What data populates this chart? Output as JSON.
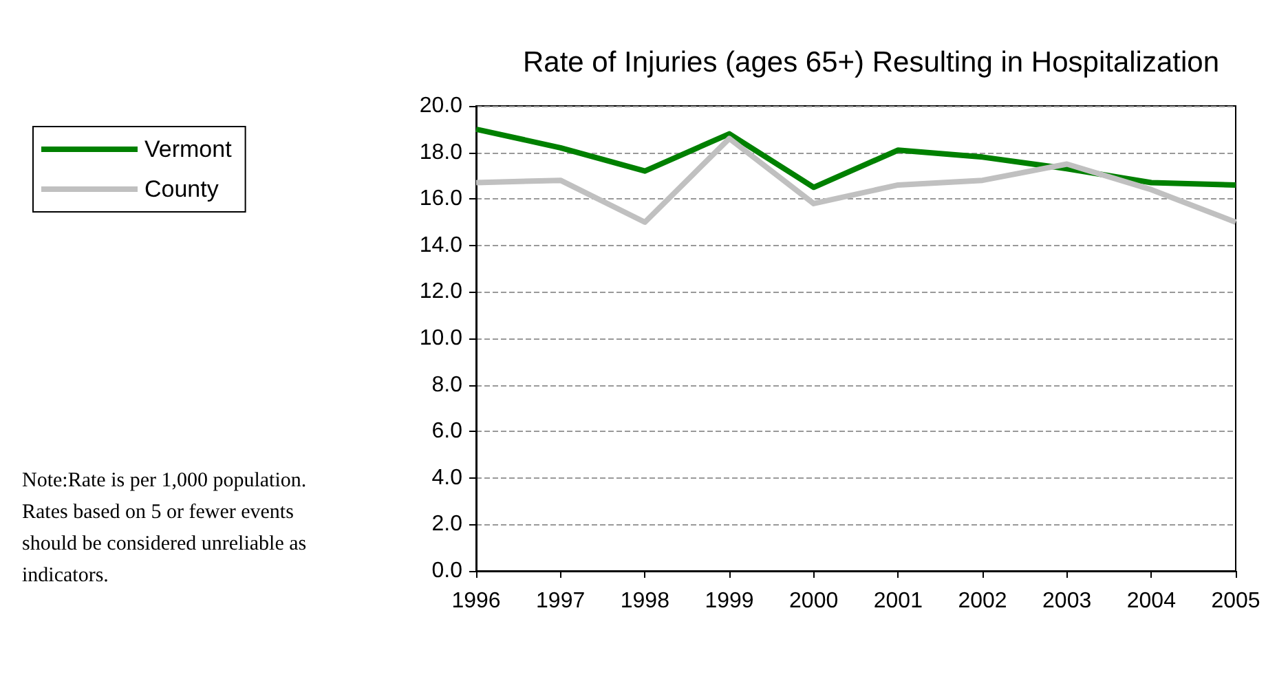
{
  "chart_data": {
    "type": "line",
    "title": "Rate of Injuries (ages 65+) Resulting in Hospitalization",
    "categories": [
      "1996",
      "1997",
      "1998",
      "1999",
      "2000",
      "2001",
      "2002",
      "2003",
      "2004",
      "2005"
    ],
    "series": [
      {
        "name": "Vermont",
        "color": "#008000",
        "values": [
          19.0,
          18.2,
          17.2,
          18.8,
          16.5,
          18.1,
          17.8,
          17.3,
          16.7,
          16.6
        ]
      },
      {
        "name": "County",
        "color": "#c0c0c0",
        "values": [
          16.7,
          16.8,
          15.0,
          18.6,
          15.8,
          16.6,
          16.8,
          17.5,
          16.4,
          15.0
        ]
      }
    ],
    "ylim": [
      0,
      20
    ],
    "yticks": [
      {
        "value": 0,
        "label": "0.0"
      },
      {
        "value": 2,
        "label": "2.0"
      },
      {
        "value": 4,
        "label": "4.0"
      },
      {
        "value": 6,
        "label": "6.0"
      },
      {
        "value": 8,
        "label": "8.0"
      },
      {
        "value": 10,
        "label": "10.0"
      },
      {
        "value": 12,
        "label": "12.0"
      },
      {
        "value": 14,
        "label": "14.0"
      },
      {
        "value": 16,
        "label": "16.0"
      },
      {
        "value": 18,
        "label": "18.0"
      },
      {
        "value": 20,
        "label": "20.0"
      }
    ],
    "grid": "y",
    "legend": "left",
    "marker": "none",
    "line_style": "solid",
    "annotations": [
      "Note:Rate is per 1,000 population.\nRates based on 5 or fewer events\nshould be considered unreliable as\nindicators."
    ]
  }
}
